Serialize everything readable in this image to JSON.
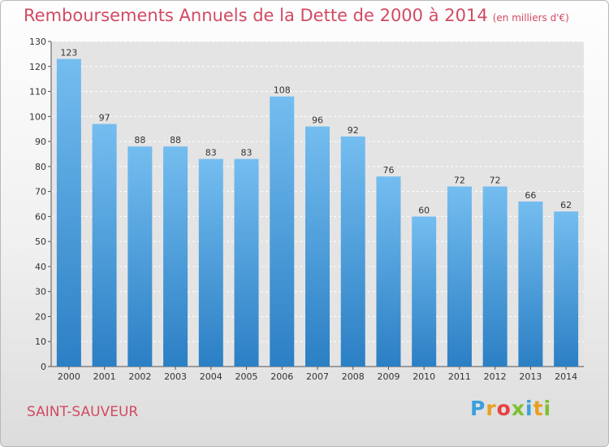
{
  "header": {
    "title": "Remboursements Annuels de la Dette de 2000 à 2014",
    "subtitle": "(en milliers d'€)"
  },
  "footer": {
    "place": "SAINT-SAUVEUR",
    "logo_letters": [
      "P",
      "r",
      "o",
      "x",
      "i",
      "t",
      "i"
    ],
    "logo_colors": [
      "#3aa0dc",
      "#e8a020",
      "#e84040",
      "#7cc030",
      "#3aa0dc",
      "#e8a020",
      "#7cc030"
    ]
  },
  "colors": {
    "bar_top": "#74bdf0",
    "bar_bottom": "#2b7fc4",
    "title": "#d24a62"
  },
  "chart_data": {
    "type": "bar",
    "categories": [
      "2000",
      "2001",
      "2002",
      "2003",
      "2004",
      "2005",
      "2006",
      "2007",
      "2008",
      "2009",
      "2010",
      "2011",
      "2012",
      "2013",
      "2014"
    ],
    "values": [
      123,
      97,
      88,
      88,
      83,
      83,
      108,
      96,
      92,
      76,
      60,
      72,
      72,
      66,
      62
    ],
    "ylim": [
      0,
      130
    ],
    "yticks": [
      0,
      10,
      20,
      30,
      40,
      50,
      60,
      70,
      80,
      90,
      100,
      110,
      120,
      130
    ],
    "grid": "horizontal",
    "xlabel": "",
    "ylabel": ""
  }
}
